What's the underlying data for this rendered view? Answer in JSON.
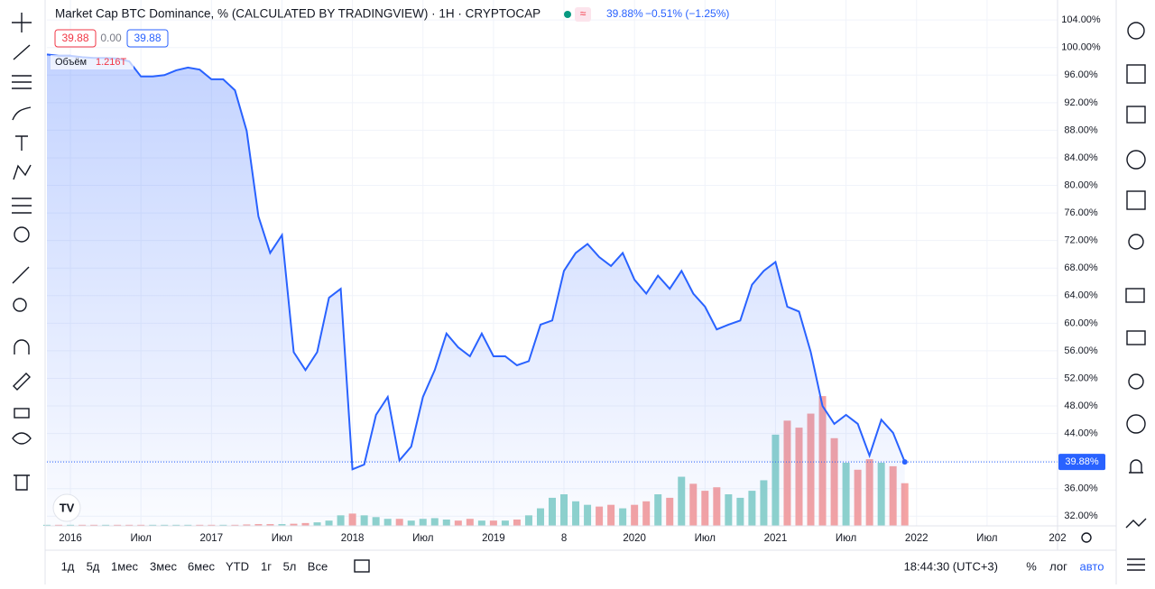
{
  "chart_data": {
    "type": "line",
    "title": "Market Cap BTC Dominance, % (CALCULATED BY TRADINGVIEW) · 1H · CRYPTOCAP",
    "last_value_label": "39.88%",
    "change_label": "−0.51% (−1.25%)",
    "ohlc_boxes": [
      "39.88",
      "0.00",
      "39.88"
    ],
    "color": "#2962ff",
    "x": [
      "2015-11",
      "2015-12",
      "2016-01",
      "2016-02",
      "2016-03",
      "2016-04",
      "2016-05",
      "2016-06",
      "2016-07",
      "2016-08",
      "2016-09",
      "2016-10",
      "2016-11",
      "2016-12",
      "2017-01",
      "2017-02",
      "2017-03",
      "2017-04",
      "2017-05",
      "2017-06",
      "2017-07",
      "2017-08",
      "2017-09",
      "2017-10",
      "2017-11",
      "2017-12",
      "2018-01",
      "2018-02",
      "2018-03",
      "2018-04",
      "2018-05",
      "2018-06",
      "2018-07",
      "2018-08",
      "2018-09",
      "2018-10",
      "2018-11",
      "2018-12",
      "2019-01",
      "2019-02",
      "2019-03",
      "2019-04",
      "2019-05",
      "2019-06",
      "2019-07",
      "2019-08",
      "2019-09",
      "2019-10",
      "2019-11",
      "2019-12",
      "2020-01",
      "2020-02",
      "2020-03",
      "2020-04",
      "2020-05",
      "2020-06",
      "2020-07",
      "2020-08",
      "2020-09",
      "2020-10",
      "2020-11",
      "2020-12",
      "2021-01",
      "2021-02",
      "2021-03",
      "2021-04",
      "2021-05",
      "2021-06",
      "2021-07",
      "2021-08",
      "2021-09",
      "2021-10",
      "2021-11",
      "2021-12"
    ],
    "values": [
      99.0,
      98.8,
      98.8,
      98.6,
      98.5,
      98.5,
      98.4,
      98.0,
      95.8,
      95.8,
      96.0,
      96.7,
      97.1,
      96.8,
      95.4,
      95.4,
      93.8,
      87.9,
      75.5,
      70.2,
      72.8,
      55.8,
      53.2,
      55.8,
      63.7,
      65.0,
      38.8,
      39.5,
      46.7,
      49.3,
      40.1,
      42.1,
      49.3,
      53.2,
      58.5,
      56.5,
      55.2,
      58.5,
      55.2,
      55.2,
      53.9,
      54.5,
      59.8,
      60.4,
      67.6,
      70.2,
      71.5,
      69.6,
      68.3,
      70.2,
      66.3,
      64.3,
      66.9,
      65.0,
      67.6,
      64.3,
      62.4,
      59.1,
      59.8,
      60.4,
      65.6,
      67.6,
      68.9,
      62.4,
      61.7,
      55.8,
      48.0,
      45.4,
      46.7,
      45.4,
      40.8,
      46.0,
      44.1,
      39.88
    ],
    "xlim": [
      "2015-11",
      "2023-01"
    ],
    "xticks": [
      {
        "value": "2016-01",
        "label": "2016"
      },
      {
        "value": "2016-07",
        "label": "Июл"
      },
      {
        "value": "2017-01",
        "label": "2017"
      },
      {
        "value": "2017-07",
        "label": "Июл"
      },
      {
        "value": "2018-01",
        "label": "2018"
      },
      {
        "value": "2018-07",
        "label": "Июл"
      },
      {
        "value": "2019-01",
        "label": "2019"
      },
      {
        "value": "2019-07",
        "label": "8"
      },
      {
        "value": "2020-01",
        "label": "2020"
      },
      {
        "value": "2020-07",
        "label": "Июл"
      },
      {
        "value": "2021-01",
        "label": "2021"
      },
      {
        "value": "2021-07",
        "label": "Июл"
      },
      {
        "value": "2022-01",
        "label": "2022"
      },
      {
        "value": "2022-07",
        "label": "Июл"
      },
      {
        "value": "2023-01",
        "label": "202"
      }
    ],
    "ylim": [
      30.6,
      106.9
    ],
    "yticks": [
      {
        "value": 32,
        "label": "32.00%"
      },
      {
        "value": 36,
        "label": "36.00%"
      },
      {
        "value": 40,
        "label": "40.00%"
      },
      {
        "value": 44,
        "label": "44.00%"
      },
      {
        "value": 48,
        "label": "48.00%"
      },
      {
        "value": 52,
        "label": "52.00%"
      },
      {
        "value": 56,
        "label": "56.00%"
      },
      {
        "value": 60,
        "label": "60.00%"
      },
      {
        "value": 64,
        "label": "64.00%"
      },
      {
        "value": 68,
        "label": "68.00%"
      },
      {
        "value": 72,
        "label": "72.00%"
      },
      {
        "value": 76,
        "label": "76.00%"
      },
      {
        "value": 80,
        "label": "80.00%"
      },
      {
        "value": 84,
        "label": "84.00%"
      },
      {
        "value": 88,
        "label": "88.00%"
      },
      {
        "value": 92,
        "label": "92.00%"
      },
      {
        "value": 96,
        "label": "96.00%"
      },
      {
        "value": 100,
        "label": "100.00%"
      },
      {
        "value": 104,
        "label": "104.00%"
      }
    ],
    "grid": true,
    "volume": {
      "name": "Объём",
      "last_label": "1.216T",
      "up_color": "#8fd3cc",
      "down_color": "#f5a3a3",
      "lim": [
        0,
        4.5
      ],
      "values": [
        0.03,
        0.03,
        0.03,
        0.03,
        0.03,
        0.03,
        0.03,
        0.03,
        0.03,
        0.03,
        0.03,
        0.03,
        0.03,
        0.03,
        0.03,
        0.03,
        0.03,
        0.04,
        0.05,
        0.05,
        0.05,
        0.06,
        0.08,
        0.1,
        0.15,
        0.3,
        0.35,
        0.3,
        0.25,
        0.2,
        0.2,
        0.15,
        0.2,
        0.22,
        0.18,
        0.15,
        0.2,
        0.15,
        0.15,
        0.15,
        0.18,
        0.3,
        0.5,
        0.8,
        0.9,
        0.7,
        0.6,
        0.55,
        0.6,
        0.5,
        0.6,
        0.7,
        0.9,
        0.8,
        1.4,
        1.2,
        1.0,
        1.1,
        0.9,
        0.8,
        1.0,
        1.3,
        2.6,
        3.0,
        2.8,
        3.2,
        3.7,
        2.5,
        1.8,
        1.6,
        1.9,
        1.8,
        1.7,
        1.216
      ]
    },
    "timeframes": [
      "1д",
      "5д",
      "1мес",
      "3мес",
      "6мес",
      "YTD",
      "1г",
      "5л",
      "Все"
    ],
    "clock": "18:44:30 (UTC+3)",
    "scale_buttons": [
      "%",
      "лог",
      "авто"
    ]
  }
}
